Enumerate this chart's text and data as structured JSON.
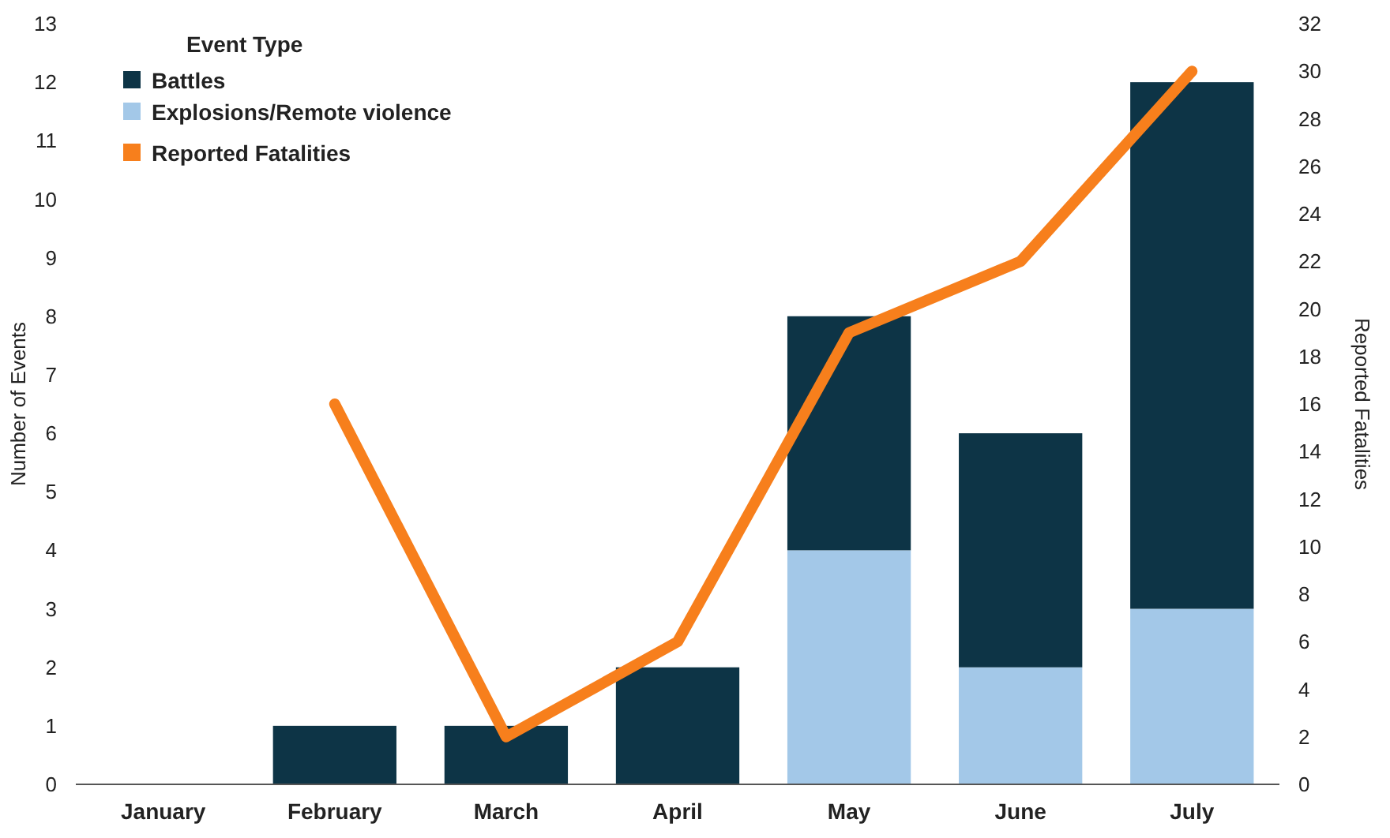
{
  "chart_data": {
    "type": "bar",
    "stacked": true,
    "categories": [
      "January",
      "February",
      "March",
      "April",
      "May",
      "June",
      "July"
    ],
    "ylabel": "Number of Events",
    "y2label": "Reported Fatalities",
    "legend_title": "Event Type",
    "legend": "top left",
    "ylim": [
      0,
      13
    ],
    "yticks": [
      0,
      1,
      2,
      3,
      4,
      5,
      6,
      7,
      8,
      9,
      10,
      11,
      12,
      13
    ],
    "y2lim": [
      0,
      32
    ],
    "y2ticks": [
      0,
      2,
      4,
      6,
      8,
      10,
      12,
      14,
      16,
      18,
      20,
      22,
      24,
      26,
      28,
      30,
      32
    ],
    "series": [
      {
        "name": "Explosions/Remote violence",
        "color": "#a3c8e8",
        "values": [
          0,
          0,
          0,
          0,
          4,
          2,
          3
        ]
      },
      {
        "name": "Battles",
        "color": "#0d3446",
        "values": [
          0,
          1,
          1,
          2,
          4,
          4,
          9
        ]
      },
      {
        "name": "Reported Fatalities",
        "type": "line",
        "axis": "y2",
        "color": "#f77f1c",
        "values": [
          null,
          16,
          2,
          6,
          19,
          22,
          30
        ]
      }
    ]
  }
}
